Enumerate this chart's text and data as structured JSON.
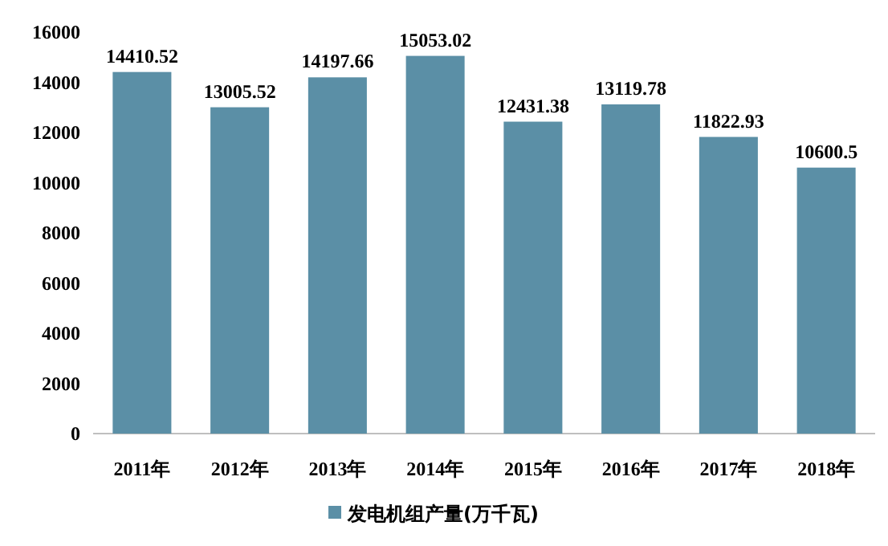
{
  "chart_data": {
    "type": "bar",
    "categories": [
      "2011年",
      "2012年",
      "2013年",
      "2014年",
      "2015年",
      "2016年",
      "2017年",
      "2018年"
    ],
    "series": [
      {
        "name": "发电机组产量(万千瓦)",
        "color": "#5b8fa6",
        "values": [
          14410.52,
          13005.52,
          14197.66,
          15053.02,
          12431.38,
          13119.78,
          11822.93,
          10600.5
        ]
      }
    ],
    "ylim": [
      0,
      16000
    ],
    "yticks": [
      0,
      2000,
      4000,
      6000,
      8000,
      10000,
      12000,
      14000,
      16000
    ],
    "grid": false,
    "data_labels": true,
    "legend": "bottom"
  }
}
